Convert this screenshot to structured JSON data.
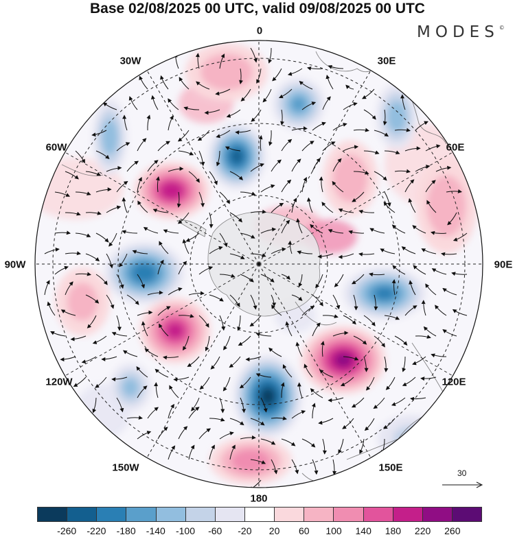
{
  "title": "Base 02/08/2025 00 UTC, valid 09/08/2025 00 UTC",
  "logo": {
    "text": "MODES",
    "mark": "©"
  },
  "longitude_labels": [
    "0",
    "30E",
    "60E",
    "90E",
    "120E",
    "150E",
    "180",
    "150W",
    "120W",
    "90W",
    "60W",
    "30W"
  ],
  "vector_scale": {
    "value": "30"
  },
  "colorbar": {
    "colors": [
      "#0b3a5c",
      "#135f8f",
      "#2a7fb4",
      "#5a9fcb",
      "#92bedf",
      "#c4d3e8",
      "#e5e5f2",
      "#ffffff",
      "#fad9dd",
      "#f6b4c4",
      "#f08db1",
      "#e2549c",
      "#c41f8a",
      "#900d84",
      "#5c0c74"
    ],
    "ticks": [
      "-260",
      "-220",
      "-180",
      "-140",
      "-100",
      "-60",
      "-20",
      "20",
      "60",
      "100",
      "140",
      "180",
      "220",
      "260"
    ]
  },
  "chart_data": {
    "type": "heatmap",
    "projection": "south polar stereographic",
    "field": "anomaly (shaded) with wind vectors",
    "color_levels": [
      -260,
      -220,
      -180,
      -140,
      -100,
      -60,
      -20,
      20,
      60,
      100,
      140,
      180,
      220,
      260
    ],
    "anomaly_centers": [
      {
        "region": "near 10W, mid-latitudes",
        "value": 80
      },
      {
        "region": "near 20E, mid-latitudes",
        "value": -140
      },
      {
        "region": "near 35E, outer",
        "value": -120
      },
      {
        "region": "near 0, interior",
        "value": -220
      },
      {
        "region": "near 55W",
        "value": 200
      },
      {
        "region": "near 40W, outer",
        "value": -120
      },
      {
        "region": "near 90W",
        "value": -200
      },
      {
        "region": "near 115W",
        "value": 180
      },
      {
        "region": "near 125W, outer",
        "value": -100
      },
      {
        "region": "near 165E / 180",
        "value": -260
      },
      {
        "region": "near 140E",
        "value": 220
      },
      {
        "region": "near 100E",
        "value": -180
      },
      {
        "region": "near 50E",
        "value": 80
      },
      {
        "region": "near 75E, outer",
        "value": 80
      },
      {
        "region": "near 170W, outer",
        "value": 120
      },
      {
        "region": "near 100W, outer",
        "value": 60
      },
      {
        "region": "near 140E, outer",
        "value": -60
      }
    ]
  }
}
